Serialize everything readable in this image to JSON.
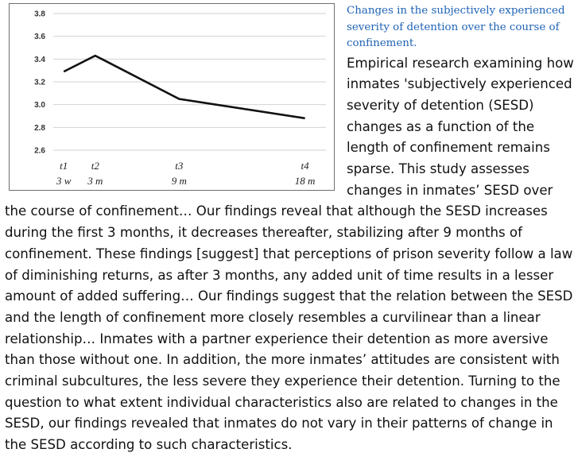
{
  "heading": "Changes in the subjectively experienced severity of detention over the course of confinement.",
  "body_text": "Empirical research examining how inmates 'subjectively experienced severity of detention (SESD) changes as a function of the length of confinement remains sparse. This study assesses changes in inmates’ SESD over the course of confinement… Our findings reveal that although the SESD increases during the first 3 months, it decreases thereafter, stabilizing after 9 months of confinement. These findings [suggest] that perceptions of prison severity follow a law of diminishing returns, as after 3 months, any added unit of time results in a lesser amount of added suffering… Our findings suggest that the relation between the SESD and the length of confinement more closely resembles a curvilinear than a linear relationship… Inmates with a partner experience their detention as more aversive than those without one. In addition, the more inmates’ attitudes are consistent with criminal subcultures, the less severe they experience their detention. Turning to the question to what extent individual characteristics also are related to changes in the SESD, our findings revealed that inmates do not vary in their patterns of change in the SESD according to such characteristics.",
  "chart_data": {
    "type": "line",
    "title": "",
    "xlabel": "",
    "ylabel": "",
    "x_months": [
      0.75,
      3,
      9,
      18
    ],
    "x_labels": [
      {
        "point": "t1",
        "time": "3 w"
      },
      {
        "point": "t2",
        "time": "3 m"
      },
      {
        "point": "t3",
        "time": "9 m"
      },
      {
        "point": "t4",
        "time": "18 m"
      }
    ],
    "series": [
      {
        "name": "SESD",
        "values": [
          3.29,
          3.43,
          3.05,
          2.88
        ],
        "color": "#111111"
      }
    ],
    "ylim": [
      2.6,
      3.8
    ],
    "y_ticks": [
      "2.6",
      "2.8",
      "3.0",
      "3.2",
      "3.4",
      "3.6",
      "3.8"
    ],
    "grid": "horizontal",
    "grid_color": "#d2d2d2"
  },
  "colors": {
    "heading": "#1e63b5",
    "text": "#111111",
    "frame": "#6f6f6f"
  }
}
